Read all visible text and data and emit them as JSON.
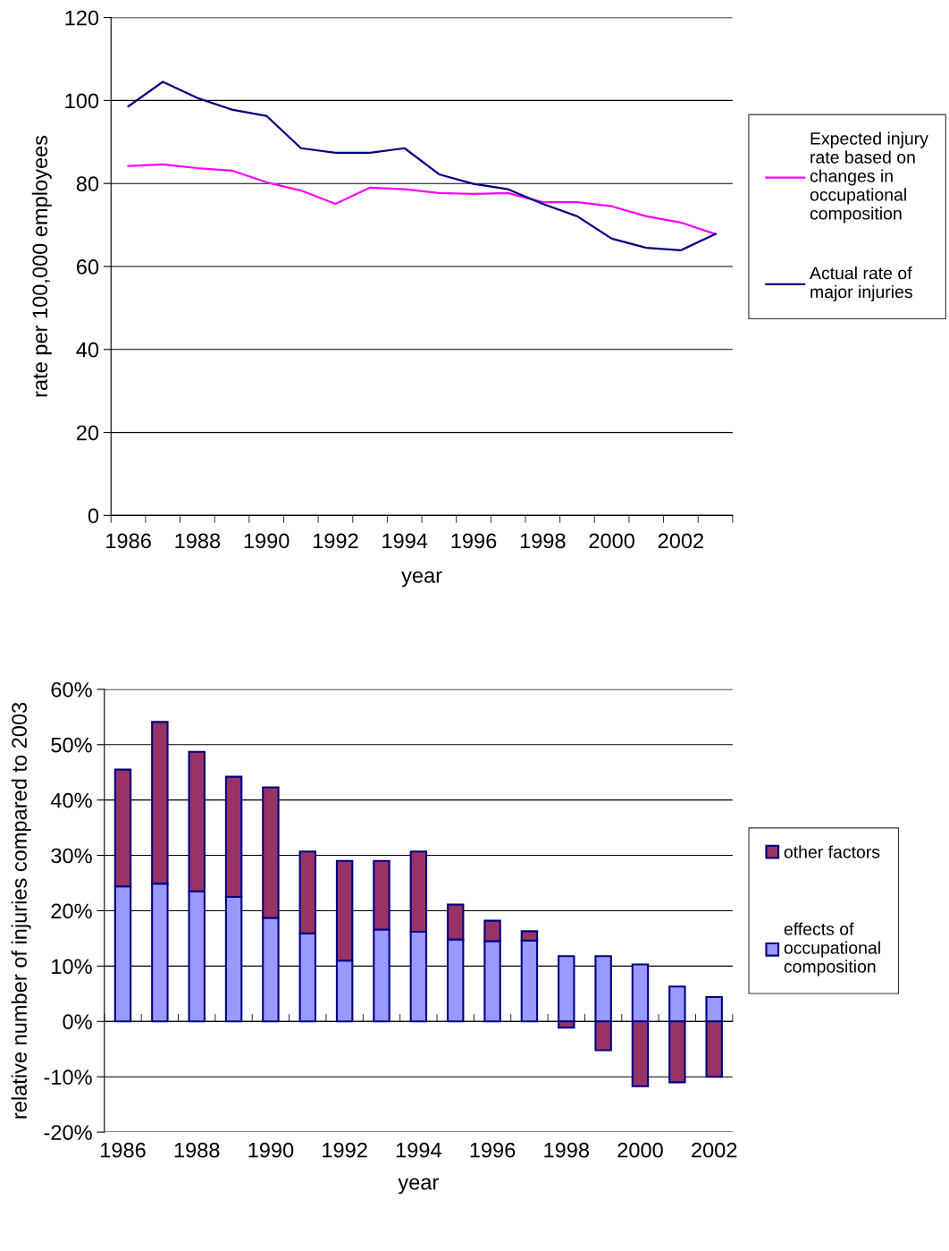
{
  "chart_data": [
    {
      "type": "line",
      "categories": [
        "1986",
        null,
        "1988",
        null,
        "1990",
        null,
        "1992",
        null,
        "1994",
        null,
        "1996",
        null,
        "1998",
        null,
        "2000",
        null,
        "2002",
        null
      ],
      "xlabel": "year",
      "ylabel": "rate per 100,000 employees",
      "ylim": [
        0,
        120
      ],
      "yticks": [
        0,
        20,
        40,
        60,
        80,
        100,
        120
      ],
      "grid": "y",
      "legend": "right",
      "marker": "none",
      "series": [
        {
          "name": "Expected injury\nrate based on\nchanges in\noccupational\ncomposition",
          "color": "#ff00ff",
          "values": [
            84.2,
            84.6,
            83.7,
            83.1,
            80.3,
            78.3,
            75.1,
            79.0,
            78.6,
            77.7,
            77.5,
            77.7,
            75.5,
            75.5,
            74.5,
            72.1,
            70.6,
            67.8
          ]
        },
        {
          "name": "Actual rate of\nmajor injuries",
          "color": "#000080",
          "values": [
            98.6,
            104.5,
            100.6,
            97.8,
            96.3,
            88.5,
            87.4,
            87.4,
            88.5,
            82.2,
            79.9,
            78.6,
            75.1,
            72.1,
            66.7,
            64.5,
            63.9,
            67.8
          ]
        }
      ]
    },
    {
      "type": "bar",
      "stacked": true,
      "categories": [
        "1986",
        null,
        "1988",
        null,
        "1990",
        null,
        "1992",
        null,
        "1994",
        null,
        "1996",
        null,
        "1998",
        null,
        "2000",
        null,
        "2002"
      ],
      "xlabel": "year",
      "ylabel": "relative number of injuries compared to 2003",
      "ylim": [
        -20,
        60
      ],
      "yticks": [
        {
          "value": -20,
          "label": "-20%"
        },
        {
          "value": -10,
          "label": "-10%"
        },
        {
          "value": 0,
          "label": "0%"
        },
        {
          "value": 10,
          "label": "10%"
        },
        {
          "value": 20,
          "label": "20%"
        },
        {
          "value": 30,
          "label": "30%"
        },
        {
          "value": 40,
          "label": "40%"
        },
        {
          "value": 50,
          "label": "50%"
        },
        {
          "value": 60,
          "label": "60%"
        }
      ],
      "grid": "y",
      "legend": "right",
      "series": [
        {
          "name": "effects of\noccupational\ncomposition",
          "color": "#9999ff",
          "values": [
            24.4,
            24.9,
            23.5,
            22.5,
            18.7,
            15.9,
            11.0,
            16.6,
            16.2,
            14.8,
            14.5,
            14.6,
            11.8,
            11.8,
            10.3,
            6.3,
            4.4
          ]
        },
        {
          "name": "other factors",
          "color": "#993366",
          "values": [
            21.1,
            29.2,
            25.2,
            21.7,
            23.6,
            14.8,
            18.0,
            12.4,
            14.5,
            6.3,
            3.7,
            1.7,
            -1.1,
            -5.2,
            -11.7,
            -11.0,
            -10.0
          ]
        }
      ]
    }
  ]
}
